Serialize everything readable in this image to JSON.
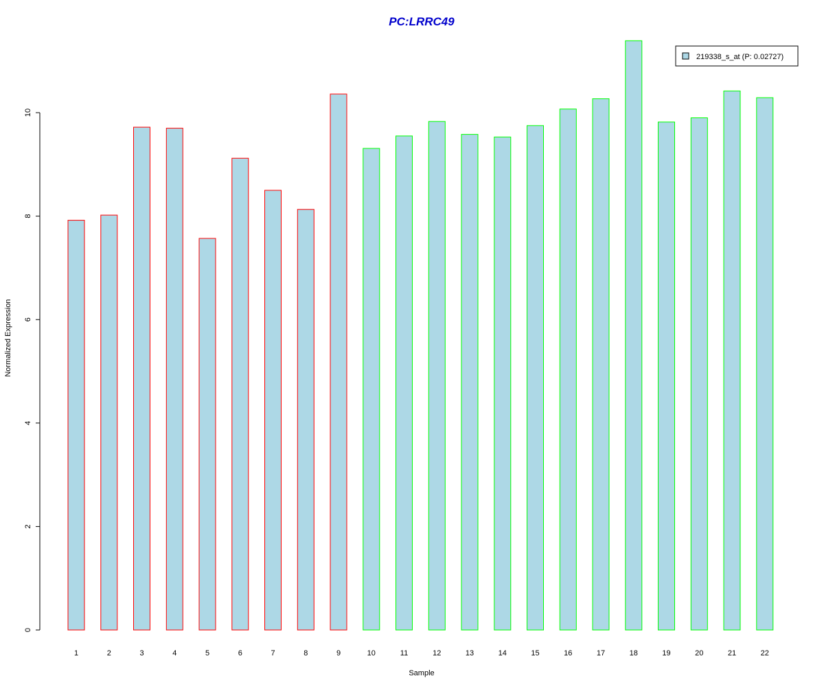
{
  "chart_data": {
    "type": "bar",
    "title": "PC:LRRC49",
    "xlabel": "Sample",
    "ylabel": "Normalized Expression",
    "ylim": [
      0,
      11.4
    ],
    "yticks": [
      "0",
      "2",
      "4",
      "6",
      "8",
      "10"
    ],
    "categories": [
      "1",
      "2",
      "3",
      "4",
      "5",
      "6",
      "7",
      "8",
      "9",
      "10",
      "11",
      "12",
      "13",
      "14",
      "15",
      "16",
      "17",
      "18",
      "19",
      "20",
      "21",
      "22"
    ],
    "values": [
      7.92,
      8.02,
      9.72,
      9.7,
      7.57,
      9.12,
      8.5,
      8.13,
      10.36,
      9.31,
      9.55,
      9.83,
      9.58,
      9.53,
      9.75,
      10.07,
      10.27,
      11.39,
      9.82,
      9.9,
      10.42,
      10.29
    ],
    "bar_fill": "#add8e6",
    "group_colors": [
      "#ff0000",
      "#ff0000",
      "#ff0000",
      "#ff0000",
      "#ff0000",
      "#ff0000",
      "#ff0000",
      "#ff0000",
      "#ff0000",
      "#00ff00",
      "#00ff00",
      "#00ff00",
      "#00ff00",
      "#00ff00",
      "#00ff00",
      "#00ff00",
      "#00ff00",
      "#00ff00",
      "#00ff00",
      "#00ff00",
      "#00ff00",
      "#00ff00"
    ],
    "legend": {
      "position": "top-right",
      "entries": [
        {
          "label": "219338_s_at (P: 0.02727)",
          "color": "#add8e6"
        }
      ]
    },
    "grid": false
  }
}
